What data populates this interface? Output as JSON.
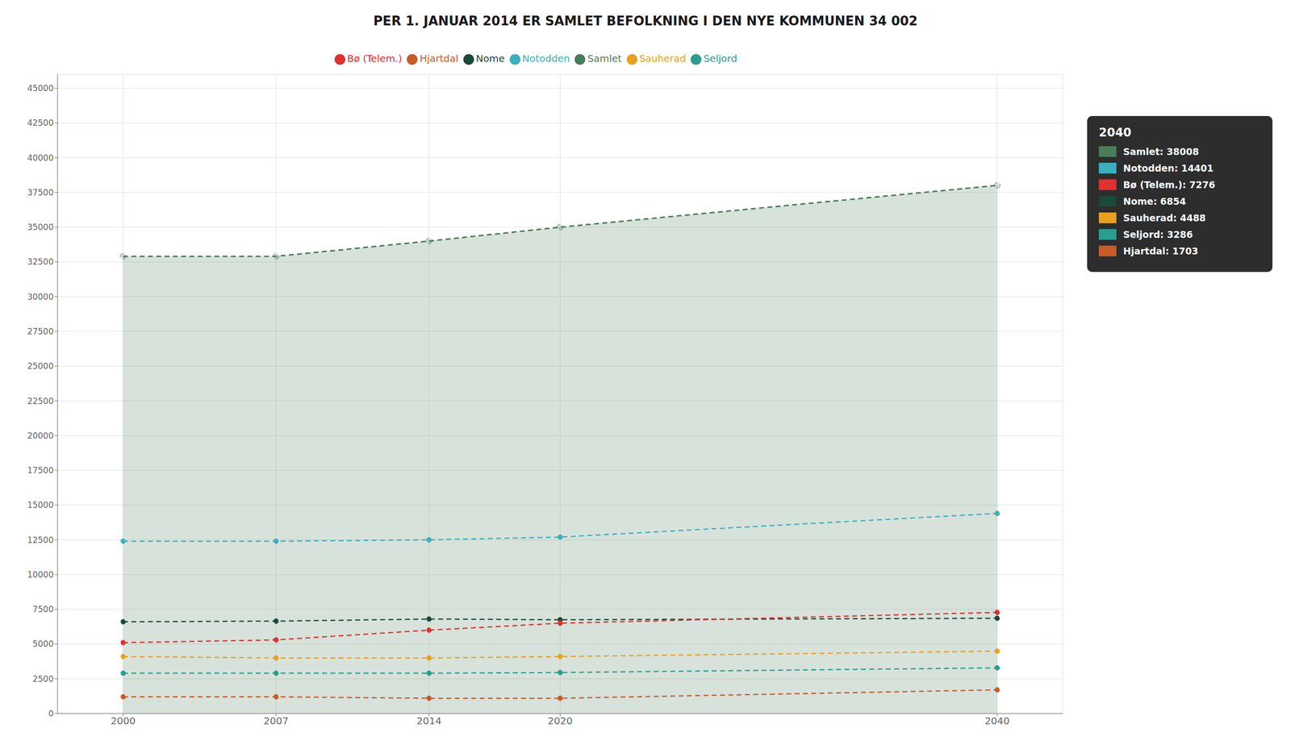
{
  "chart_data": {
    "type": "line",
    "title": "PER 1. JANUAR 2014 ER SAMLET BEFOLKNING I DEN NYE KOMMUNEN 34 002",
    "x": [
      2000,
      2007,
      2014,
      2020,
      2040
    ],
    "series": [
      {
        "name": "Samlet",
        "type": "area",
        "color": "#4a7c59",
        "marker": "circle",
        "line_style": "dashed",
        "values": [
          32900,
          32900,
          34002,
          35000,
          38008
        ]
      },
      {
        "name": "Nome",
        "type": "line",
        "color": "#1a4a3a",
        "marker": "circle",
        "line_style": "dashed",
        "values": [
          6600,
          6650,
          6800,
          6750,
          6854
        ]
      },
      {
        "name": "Bø (Telem.)",
        "type": "line",
        "color": "#e03030",
        "marker": "circle",
        "line_style": "dashed",
        "values": [
          5100,
          5300,
          6000,
          6500,
          7276
        ]
      },
      {
        "name": "Seljord",
        "type": "line",
        "color": "#2a9d8f",
        "marker": "circle",
        "line_style": "dashed",
        "values": [
          2900,
          2900,
          2900,
          2950,
          3286
        ]
      },
      {
        "name": "Hjartdal",
        "type": "line",
        "color": "#c75b2a",
        "marker": "circle",
        "line_style": "dashed",
        "values": [
          1200,
          1200,
          1100,
          1100,
          1703
        ]
      },
      {
        "name": "Notodden",
        "type": "line",
        "color": "#3aafbe",
        "marker": "circle",
        "line_style": "dashed",
        "values": [
          12400,
          12400,
          12500,
          12700,
          14401
        ]
      },
      {
        "name": "Sauherad",
        "type": "line",
        "color": "#e8a020",
        "marker": "circle",
        "line_style": "dashed",
        "values": [
          4100,
          4000,
          4000,
          4100,
          4488
        ]
      }
    ],
    "xlim": [
      1997,
      2043
    ],
    "xticks": [
      2000,
      2007,
      2014,
      2020,
      2040
    ],
    "ylim": [
      0,
      46000
    ],
    "yticks": [
      0,
      2500,
      5000,
      7500,
      10000,
      12500,
      15000,
      17500,
      20000,
      22500,
      25000,
      27500,
      30000,
      32500,
      35000,
      37500,
      40000,
      42500,
      45000
    ],
    "grid": true,
    "legend": "top",
    "annotations": [
      {
        "text": "2040"
      },
      {
        "text": "Samlet: 38008",
        "color": "#4a7c59"
      },
      {
        "text": "Notodden: 14401",
        "color": "#3aafbe"
      },
      {
        "text": "Bø (Telem.): 7276",
        "color": "#e03030"
      },
      {
        "text": "Nome: 6854",
        "color": "#1a4a3a"
      },
      {
        "text": "Sauherad: 4488",
        "color": "#e8a020"
      },
      {
        "text": "Seljord: 3286",
        "color": "#2a9d8f"
      },
      {
        "text": "Hjartdal: 1703",
        "color": "#c75b2a"
      }
    ]
  }
}
